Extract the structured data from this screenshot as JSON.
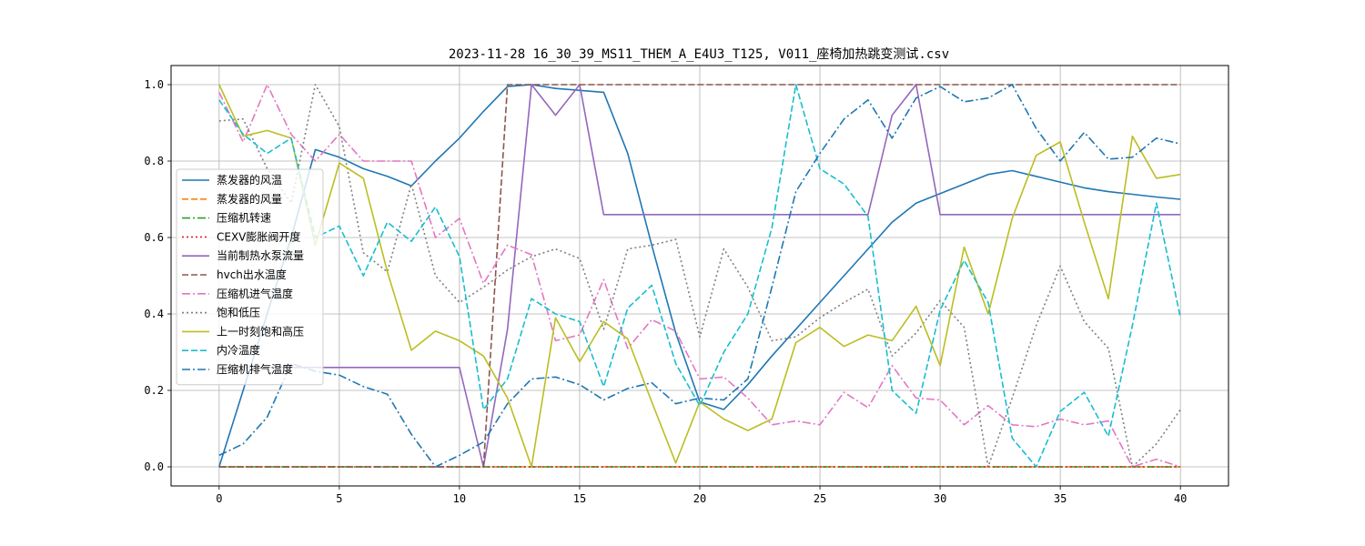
{
  "chart_data": {
    "type": "line",
    "title": "2023-11-28 16_30_39_MS11_THEM_A_E4U3_T125, V011_座椅加热跳变测试.csv",
    "xlabel": "",
    "ylabel": "",
    "xlim": [
      -2,
      42
    ],
    "ylim": [
      -0.05,
      1.05
    ],
    "xticks": [
      "0",
      "5",
      "10",
      "15",
      "20",
      "25",
      "30",
      "35",
      "40"
    ],
    "yticks": [
      "0.0",
      "0.2",
      "0.4",
      "0.6",
      "0.8",
      "1.0"
    ],
    "grid": true,
    "legend_position": "center-left",
    "x": [
      0,
      1,
      2,
      3,
      4,
      5,
      6,
      7,
      8,
      9,
      10,
      11,
      12,
      13,
      14,
      15,
      16,
      17,
      18,
      19,
      20,
      21,
      22,
      23,
      24,
      25,
      26,
      27,
      28,
      29,
      30,
      31,
      32,
      33,
      34,
      35,
      36,
      37,
      38,
      39,
      40
    ],
    "series": [
      {
        "name": "蒸发器的风温",
        "color": "#1f77b4",
        "dash": "solid",
        "values": [
          0.0,
          0.2,
          0.4,
          0.6,
          0.83,
          0.81,
          0.78,
          0.76,
          0.735,
          0.8,
          0.86,
          0.93,
          0.995,
          1.0,
          0.99,
          0.985,
          0.98,
          0.82,
          0.58,
          0.35,
          0.17,
          0.15,
          0.215,
          0.29,
          0.36,
          0.43,
          0.5,
          0.57,
          0.64,
          0.69,
          0.715,
          0.74,
          0.765,
          0.775,
          0.76,
          0.745,
          0.73,
          0.72,
          0.713,
          0.706,
          0.7
        ]
      },
      {
        "name": "蒸发器的风量",
        "color": "#ff7f0e",
        "dash": "dashed",
        "values": [
          0,
          0,
          0,
          0,
          0,
          0,
          0,
          0,
          0,
          0,
          0,
          0,
          0,
          0,
          0,
          0,
          0,
          0,
          0,
          0,
          0,
          0,
          0,
          0,
          0,
          0,
          0,
          0,
          0,
          0,
          0,
          0,
          0,
          0,
          0,
          0,
          0,
          0,
          0,
          0,
          0
        ]
      },
      {
        "name": "压缩机转速",
        "color": "#2ca02c",
        "dash": "dashdot",
        "values": [
          0,
          0,
          0,
          0,
          0,
          0,
          0,
          0,
          0,
          0,
          0,
          0,
          0,
          0,
          0,
          0,
          0,
          0,
          0,
          0,
          0,
          0,
          0,
          0,
          0,
          0,
          0,
          0,
          0,
          0,
          0,
          0,
          0,
          0,
          0,
          0,
          0,
          0,
          0,
          0,
          0
        ]
      },
      {
        "name": "CEXV膨胀阀开度",
        "color": "#d62728",
        "dash": "dotted",
        "values": [
          0,
          0,
          0,
          0,
          0,
          0,
          0,
          0,
          0,
          0,
          0,
          0,
          0,
          0,
          0,
          0,
          0,
          0,
          0,
          0,
          0,
          0,
          0,
          0,
          0,
          0,
          0,
          0,
          0,
          0,
          0,
          0,
          0,
          0,
          0,
          0,
          0,
          0,
          0,
          0,
          0
        ]
      },
      {
        "name": "当前制热水泵流量",
        "color": "#9467bd",
        "dash": "solid",
        "values": [
          0.26,
          0.26,
          0.26,
          0.26,
          0.26,
          0.26,
          0.26,
          0.26,
          0.26,
          0.26,
          0.26,
          0.0,
          0.36,
          1.0,
          0.92,
          1.0,
          0.66,
          0.66,
          0.66,
          0.66,
          0.66,
          0.66,
          0.66,
          0.66,
          0.66,
          0.66,
          0.66,
          0.66,
          0.92,
          1.0,
          0.66,
          0.66,
          0.66,
          0.66,
          0.66,
          0.66,
          0.66,
          0.66,
          0.66,
          0.66,
          0.66
        ]
      },
      {
        "name": "hvch出水温度",
        "color": "#8c564b",
        "dash": "dashed",
        "values": [
          0,
          0,
          0,
          0,
          0,
          0,
          0,
          0,
          0,
          0,
          0,
          0,
          1.0,
          1.0,
          1.0,
          1.0,
          1.0,
          1.0,
          1.0,
          1.0,
          1.0,
          1.0,
          1.0,
          1.0,
          1.0,
          1.0,
          1.0,
          1.0,
          1.0,
          1.0,
          1.0,
          1.0,
          1.0,
          1.0,
          1.0,
          1.0,
          1.0,
          1.0,
          1.0,
          1.0,
          1.0
        ]
      },
      {
        "name": "压缩机进气温度",
        "color": "#e377c2",
        "dash": "dashdot",
        "values": [
          0.98,
          0.85,
          1.0,
          0.87,
          0.8,
          0.87,
          0.8,
          0.8,
          0.8,
          0.6,
          0.65,
          0.48,
          0.58,
          0.555,
          0.33,
          0.345,
          0.49,
          0.31,
          0.385,
          0.355,
          0.23,
          0.235,
          0.18,
          0.11,
          0.12,
          0.11,
          0.195,
          0.155,
          0.265,
          0.18,
          0.175,
          0.11,
          0.16,
          0.11,
          0.105,
          0.125,
          0.11,
          0.12,
          0.0,
          0.02,
          0.0
        ]
      },
      {
        "name": "饱和低压",
        "color": "#7f7f7f",
        "dash": "dotted",
        "values": [
          0.905,
          0.91,
          0.78,
          0.69,
          1.0,
          0.89,
          0.56,
          0.51,
          0.74,
          0.5,
          0.43,
          0.47,
          0.515,
          0.55,
          0.57,
          0.545,
          0.36,
          0.57,
          0.58,
          0.595,
          0.34,
          0.57,
          0.47,
          0.33,
          0.34,
          0.39,
          0.43,
          0.465,
          0.29,
          0.35,
          0.435,
          0.365,
          0.0,
          0.18,
          0.37,
          0.525,
          0.38,
          0.31,
          0.0,
          0.06,
          0.15
        ]
      },
      {
        "name": "上一时刻饱和高压",
        "color": "#bcbd22",
        "dash": "solid",
        "values": [
          1.0,
          0.865,
          0.88,
          0.86,
          0.58,
          0.795,
          0.755,
          0.51,
          0.305,
          0.355,
          0.33,
          0.29,
          0.18,
          0.0,
          0.39,
          0.275,
          0.38,
          0.335,
          0.17,
          0.01,
          0.17,
          0.125,
          0.095,
          0.125,
          0.325,
          0.365,
          0.315,
          0.345,
          0.33,
          0.42,
          0.265,
          0.575,
          0.4,
          0.65,
          0.815,
          0.85,
          0.64,
          0.44,
          0.865,
          0.755,
          0.765
        ]
      },
      {
        "name": "内冷温度",
        "color": "#17becf",
        "dash": "dashed",
        "values": [
          0.96,
          0.87,
          0.82,
          0.86,
          0.6,
          0.63,
          0.5,
          0.64,
          0.59,
          0.68,
          0.55,
          0.15,
          0.23,
          0.44,
          0.4,
          0.38,
          0.21,
          0.415,
          0.475,
          0.27,
          0.16,
          0.3,
          0.4,
          0.625,
          1.0,
          0.78,
          0.74,
          0.655,
          0.2,
          0.14,
          0.41,
          0.54,
          0.43,
          0.075,
          0.0,
          0.145,
          0.195,
          0.08,
          0.37,
          0.69,
          0.39
        ]
      },
      {
        "name": "压缩机排气温度",
        "color": "#1f77b4",
        "dash": "dashdot",
        "values": [
          0.03,
          0.06,
          0.13,
          0.27,
          0.25,
          0.24,
          0.21,
          0.19,
          0.085,
          0.0,
          0.03,
          0.065,
          0.165,
          0.23,
          0.235,
          0.215,
          0.175,
          0.205,
          0.22,
          0.165,
          0.18,
          0.175,
          0.23,
          0.47,
          0.72,
          0.82,
          0.91,
          0.96,
          0.86,
          0.965,
          0.995,
          0.955,
          0.965,
          1.0,
          0.885,
          0.8,
          0.875,
          0.805,
          0.81,
          0.86,
          0.845
        ]
      }
    ]
  }
}
